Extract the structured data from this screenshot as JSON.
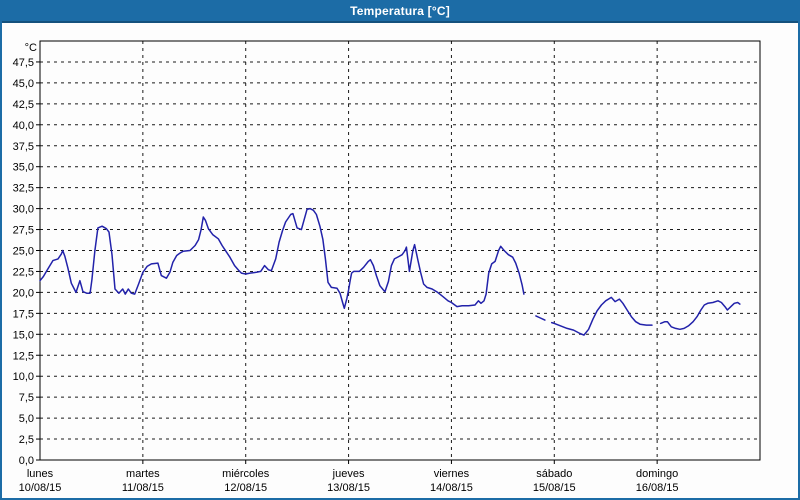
{
  "window": {
    "title": "Temperatura [°C]"
  },
  "colors": {
    "titlebar": "#1C6CA6",
    "titlebar_border": "#14517D",
    "window_border": "#1C6CA6",
    "background": "#FDFDFD",
    "plot_frame": "#000000",
    "grid": "#1A1A1A",
    "line": "#2222AA",
    "text": "#000000"
  },
  "chart_data": {
    "type": "line",
    "title": "Temperatura [°C]",
    "grid": true,
    "legend": false,
    "y_axis": {
      "unit_label": "°C",
      "min": 0,
      "max": 50,
      "grid_step": 2.5,
      "tick_labels": [
        "47,5",
        "45,0",
        "42,5",
        "40,0",
        "37,5",
        "35,0",
        "32,5",
        "30,0",
        "27,5",
        "25,0",
        "22,5",
        "20,0",
        "17,5",
        "15,0",
        "12,5",
        "10,0",
        "7,5",
        "5,0",
        "2,5",
        "0,0"
      ]
    },
    "x_axis": {
      "hours_total": 168,
      "days": [
        {
          "name": "lunes",
          "date": "10/08/15"
        },
        {
          "name": "martes",
          "date": "11/08/15"
        },
        {
          "name": "miércoles",
          "date": "12/08/15"
        },
        {
          "name": "jueves",
          "date": "13/08/15"
        },
        {
          "name": "viernes",
          "date": "14/08/15"
        },
        {
          "name": "sábado",
          "date": "15/08/15"
        },
        {
          "name": "domingo",
          "date": "16/08/15"
        }
      ]
    },
    "series": [
      {
        "name": "Temperatura",
        "color": "#2222AA",
        "unit": "°C",
        "segments": [
          [
            [
              0,
              21.4
            ],
            [
              0.8,
              21.9
            ],
            [
              1.5,
              22.5
            ],
            [
              3,
              23.8
            ],
            [
              4.2,
              24.0
            ],
            [
              5,
              24.6
            ],
            [
              5.3,
              25.0
            ],
            [
              5.8,
              24.3
            ],
            [
              6.5,
              22.9
            ],
            [
              7.3,
              21.1
            ],
            [
              8.4,
              20.0
            ],
            [
              9.3,
              21.4
            ],
            [
              10,
              20.1
            ],
            [
              10.9,
              19.9
            ],
            [
              11.7,
              19.9
            ],
            [
              12.1,
              21.5
            ],
            [
              12.8,
              25.0
            ],
            [
              13.5,
              27.7
            ],
            [
              14.5,
              27.9
            ],
            [
              15.5,
              27.6
            ],
            [
              16.1,
              27.2
            ],
            [
              16.8,
              24.5
            ],
            [
              17.5,
              20.4
            ],
            [
              18.4,
              19.9
            ],
            [
              19.3,
              20.4
            ],
            [
              19.9,
              19.8
            ],
            [
              20.6,
              20.4
            ],
            [
              21.3,
              19.9
            ],
            [
              22.1,
              19.8
            ],
            [
              23,
              21.0
            ],
            [
              24,
              22.4
            ],
            [
              25,
              23.1
            ],
            [
              26,
              23.4
            ],
            [
              27.5,
              23.5
            ],
            [
              28.3,
              22.0
            ],
            [
              29.5,
              21.7
            ],
            [
              30.3,
              22.4
            ],
            [
              31,
              23.6
            ],
            [
              31.9,
              24.4
            ],
            [
              32.7,
              24.7
            ],
            [
              33.4,
              24.9
            ],
            [
              35,
              25.0
            ],
            [
              36.2,
              25.6
            ],
            [
              37,
              26.3
            ],
            [
              37.6,
              27.5
            ],
            [
              38.1,
              29.0
            ],
            [
              38.6,
              28.6
            ],
            [
              39.3,
              27.6
            ],
            [
              40.3,
              26.9
            ],
            [
              41.6,
              26.4
            ],
            [
              42.5,
              25.6
            ],
            [
              43,
              25.2
            ],
            [
              44.3,
              24.2
            ],
            [
              45.4,
              23.2
            ],
            [
              46.4,
              22.6
            ],
            [
              47,
              22.3
            ],
            [
              48,
              22.2
            ],
            [
              49,
              22.3
            ],
            [
              50.5,
              22.4
            ],
            [
              51.5,
              22.5
            ],
            [
              52.4,
              23.2
            ],
            [
              53.3,
              22.7
            ],
            [
              54,
              22.6
            ],
            [
              55,
              24.0
            ],
            [
              55.8,
              26.0
            ],
            [
              56.6,
              27.4
            ],
            [
              57.3,
              28.4
            ],
            [
              58.5,
              29.3
            ],
            [
              59,
              29.4
            ],
            [
              60,
              27.7
            ],
            [
              61,
              27.5
            ],
            [
              62.3,
              29.9
            ],
            [
              63,
              30.0
            ],
            [
              63.8,
              29.8
            ],
            [
              64.5,
              29.3
            ],
            [
              65.3,
              27.9
            ],
            [
              66,
              26.3
            ],
            [
              66.6,
              24.0
            ],
            [
              67.2,
              21.2
            ],
            [
              68,
              20.6
            ],
            [
              69.3,
              20.5
            ],
            [
              70,
              19.9
            ],
            [
              70.6,
              18.8
            ],
            [
              71,
              18.1
            ],
            [
              71.6,
              19.3
            ],
            [
              72,
              20.3
            ],
            [
              72.4,
              21.5
            ],
            [
              72.7,
              22.3
            ],
            [
              73.2,
              22.5
            ],
            [
              74.5,
              22.5
            ],
            [
              75.5,
              23.0
            ],
            [
              76.6,
              23.7
            ],
            [
              77.1,
              23.9
            ],
            [
              77.8,
              23.2
            ],
            [
              78.5,
              22.0
            ],
            [
              79.3,
              20.8
            ],
            [
              80.1,
              20.3
            ],
            [
              80.5,
              20.1
            ],
            [
              81.3,
              21.3
            ],
            [
              82,
              23.2
            ],
            [
              82.7,
              24.0
            ],
            [
              83.8,
              24.3
            ],
            [
              84.5,
              24.5
            ],
            [
              85.2,
              25.0
            ],
            [
              85.5,
              25.4
            ],
            [
              86.2,
              22.5
            ],
            [
              87,
              25.0
            ],
            [
              87.4,
              25.7
            ],
            [
              88.2,
              23.8
            ],
            [
              88.8,
              22.4
            ],
            [
              89.5,
              21.0
            ],
            [
              90.3,
              20.6
            ],
            [
              91.5,
              20.4
            ],
            [
              92.8,
              20.0
            ],
            [
              94,
              19.5
            ],
            [
              95.2,
              19.0
            ],
            [
              96,
              18.8
            ],
            [
              97.3,
              18.3
            ],
            [
              98.5,
              18.4
            ],
            [
              100,
              18.4
            ],
            [
              101.5,
              18.5
            ],
            [
              102.3,
              19.0
            ],
            [
              102.9,
              18.7
            ],
            [
              103.6,
              19.0
            ],
            [
              104.1,
              19.8
            ],
            [
              104.7,
              22.3
            ],
            [
              105.4,
              23.4
            ],
            [
              106.2,
              23.7
            ],
            [
              107,
              25.0
            ],
            [
              107.5,
              25.5
            ],
            [
              108.3,
              25.0
            ],
            [
              109.3,
              24.5
            ],
            [
              110.3,
              24.2
            ],
            [
              111,
              23.5
            ],
            [
              111.8,
              22.3
            ],
            [
              112.5,
              20.9
            ],
            [
              112.9,
              19.8
            ]
          ],
          [
            [
              115.7,
              17.2
            ],
            [
              116.5,
              17.0
            ],
            [
              117.8,
              16.7
            ]
          ],
          [
            [
              119.4,
              16.4
            ],
            [
              120,
              16.3
            ],
            [
              121.5,
              16.0
            ],
            [
              123,
              15.7
            ],
            [
              124.5,
              15.5
            ],
            [
              126,
              15.1
            ],
            [
              126.9,
              14.9
            ],
            [
              128,
              15.6
            ],
            [
              129,
              16.8
            ],
            [
              130,
              17.8
            ],
            [
              131,
              18.5
            ],
            [
              132,
              19.0
            ],
            [
              133.3,
              19.4
            ],
            [
              134.2,
              18.9
            ],
            [
              135.2,
              19.2
            ],
            [
              136,
              18.7
            ],
            [
              137,
              17.9
            ],
            [
              138,
              17.1
            ],
            [
              139,
              16.5
            ],
            [
              140,
              16.2
            ],
            [
              141.5,
              16.1
            ],
            [
              142.8,
              16.1
            ]
          ],
          [
            [
              144.8,
              16.3
            ],
            [
              145.8,
              16.5
            ],
            [
              146.4,
              16.5
            ],
            [
              147.3,
              15.9
            ],
            [
              148.3,
              15.7
            ],
            [
              149.3,
              15.6
            ],
            [
              150.3,
              15.7
            ],
            [
              151.3,
              16.0
            ],
            [
              152.4,
              16.5
            ],
            [
              153.3,
              17.1
            ],
            [
              154.2,
              17.9
            ],
            [
              155,
              18.5
            ],
            [
              155.8,
              18.7
            ],
            [
              157,
              18.8
            ],
            [
              158.2,
              19.0
            ],
            [
              159,
              18.8
            ],
            [
              159.8,
              18.3
            ],
            [
              160.4,
              17.9
            ],
            [
              161.2,
              18.3
            ],
            [
              162,
              18.7
            ],
            [
              162.8,
              18.8
            ],
            [
              163.3,
              18.6
            ]
          ]
        ]
      }
    ]
  }
}
